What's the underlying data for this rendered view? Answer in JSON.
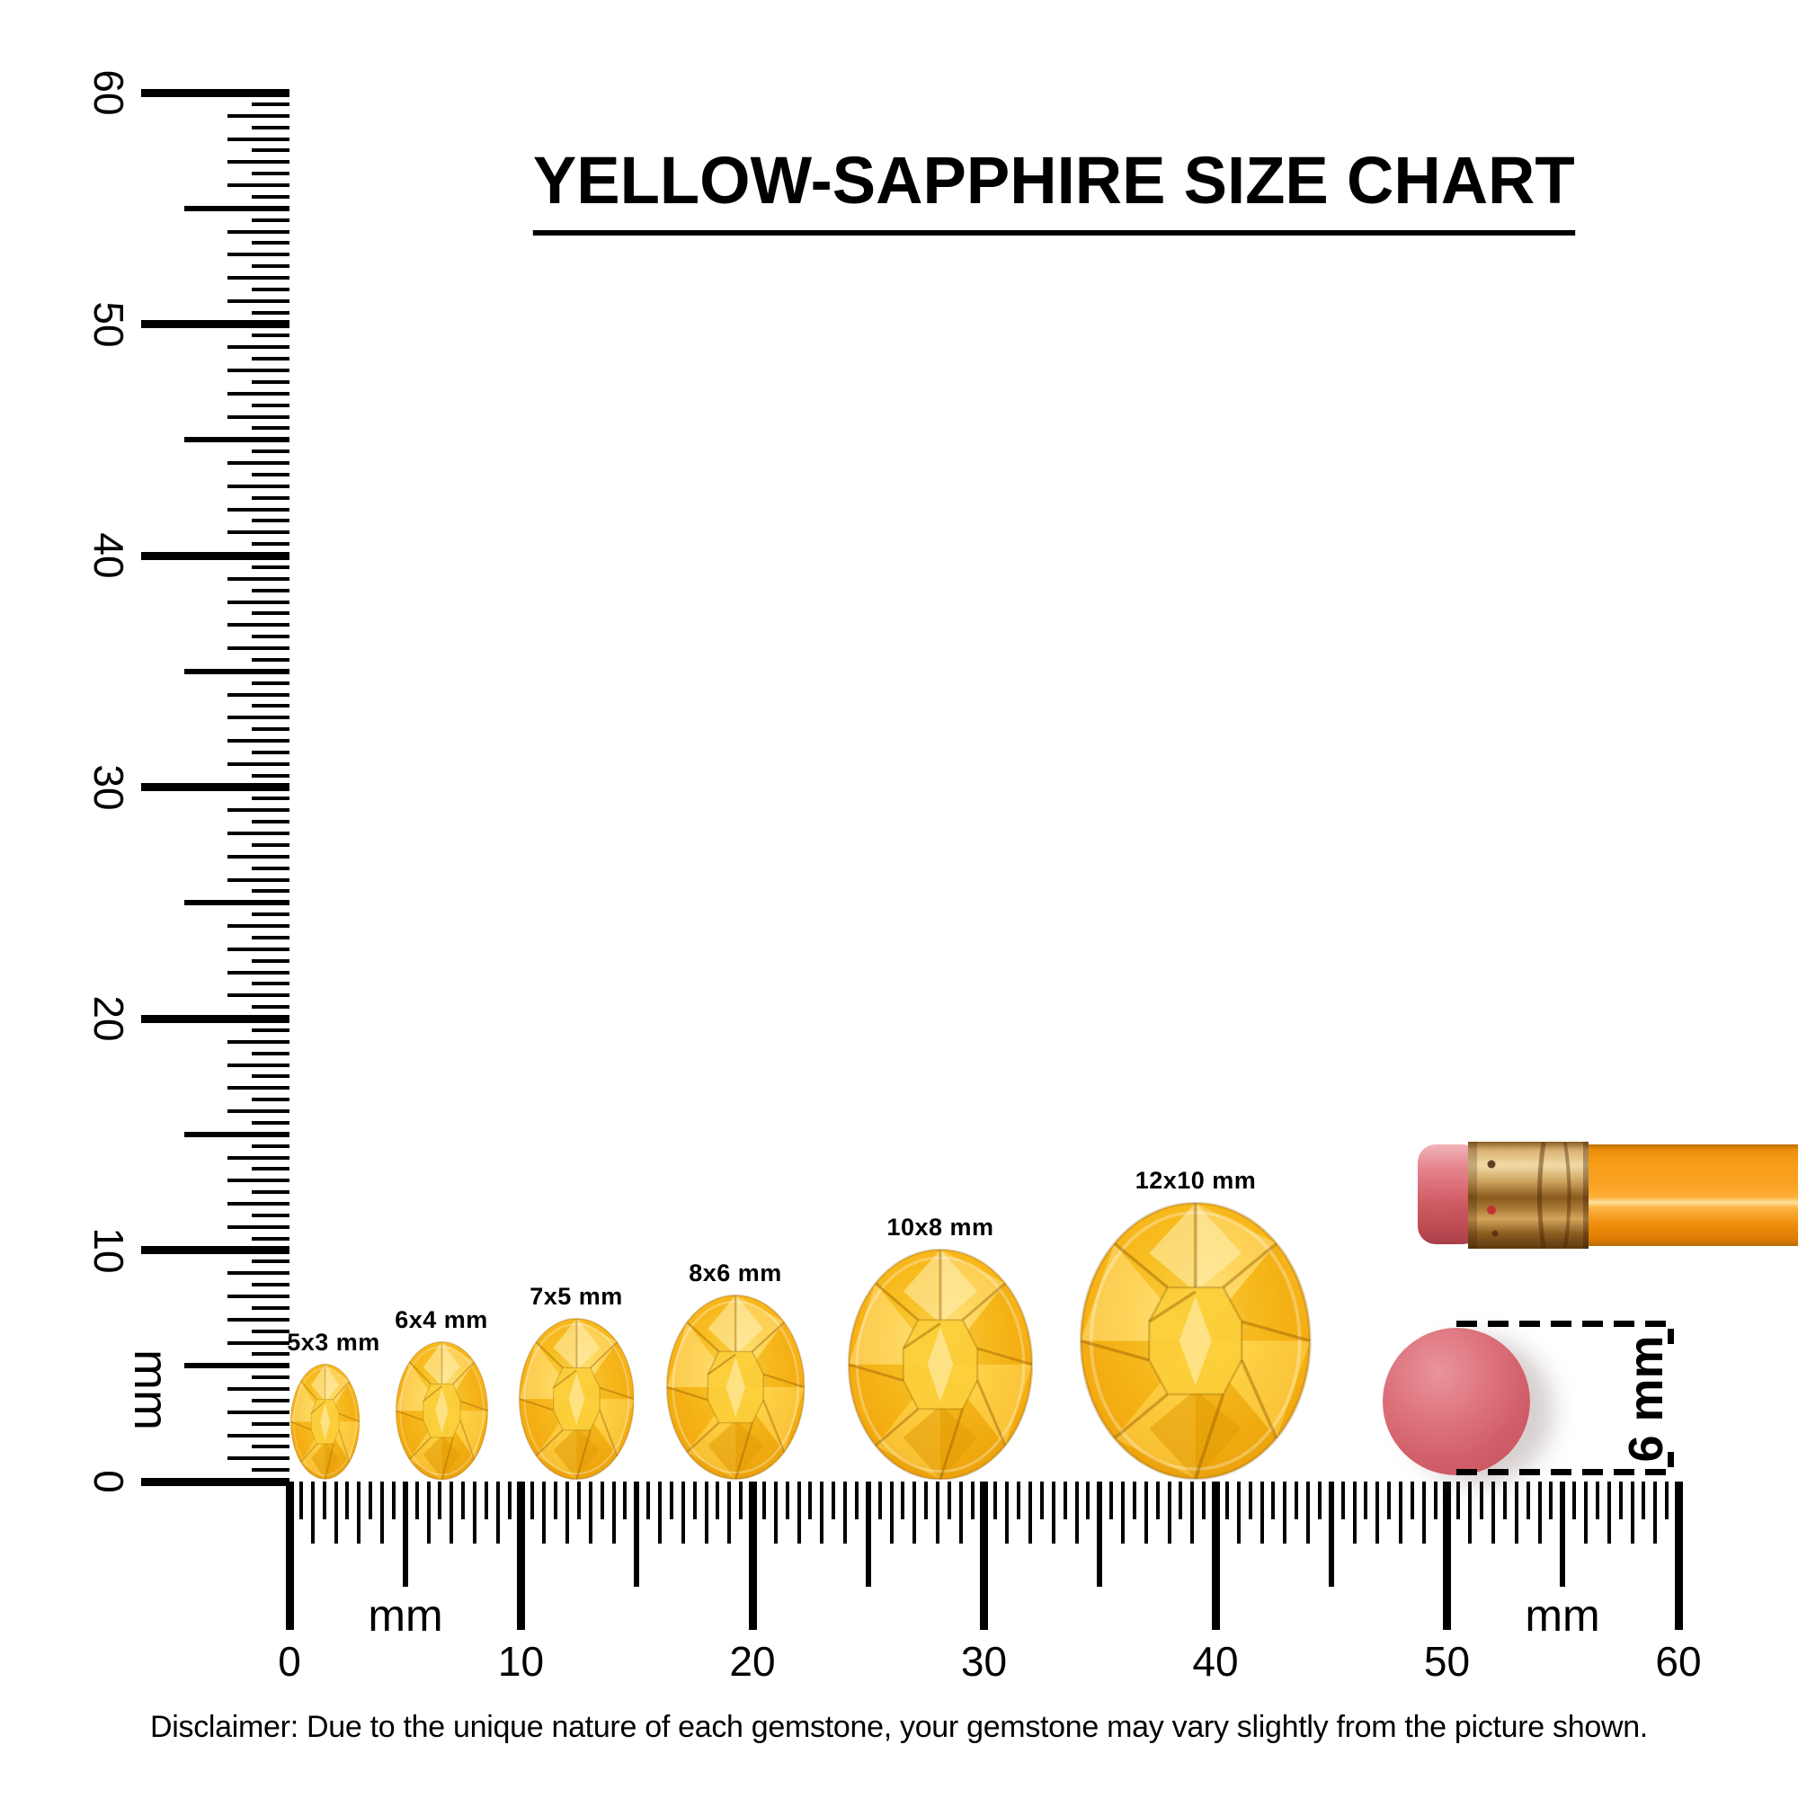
{
  "title": "YELLOW-SAPPHIRE SIZE CHART",
  "gems": [
    {
      "label": "5x3 mm",
      "length_mm": 5,
      "width_mm": 3
    },
    {
      "label": "6x4 mm",
      "length_mm": 6,
      "width_mm": 4
    },
    {
      "label": "7x5 mm",
      "length_mm": 7,
      "width_mm": 5
    },
    {
      "label": "8x6 mm",
      "length_mm": 8,
      "width_mm": 6
    },
    {
      "label": "10x8 mm",
      "length_mm": 10,
      "width_mm": 8
    },
    {
      "label": "12x10 mm",
      "length_mm": 12,
      "width_mm": 10
    }
  ],
  "rulers": {
    "vertical": {
      "unit": "mm",
      "labels": [
        "0",
        "10",
        "20",
        "30",
        "40",
        "50",
        "60"
      ],
      "max_mm": 60
    },
    "horizontal": {
      "unit_labels": [
        "mm",
        "mm"
      ],
      "labels": [
        "0",
        "10",
        "20",
        "30",
        "40",
        "50",
        "60"
      ],
      "max_mm": 60
    }
  },
  "scale_reference": {
    "label": "6 mm",
    "object": "pencil-eraser",
    "diameter_mm": 6
  },
  "disclaimer": "Disclaimer: Due to the unique nature of each gemstone, your gemstone may vary slightly from the picture shown.",
  "colors": {
    "background": "#ffffff",
    "ink": "#000000",
    "gem_light": "#ffe27a",
    "gem_mid": "#fcc62a",
    "gem_dark": "#d68c05",
    "pencil_body": "#f99d1a",
    "pencil_ferrule": "#c89043",
    "eraser_pink": "#d2616b"
  }
}
